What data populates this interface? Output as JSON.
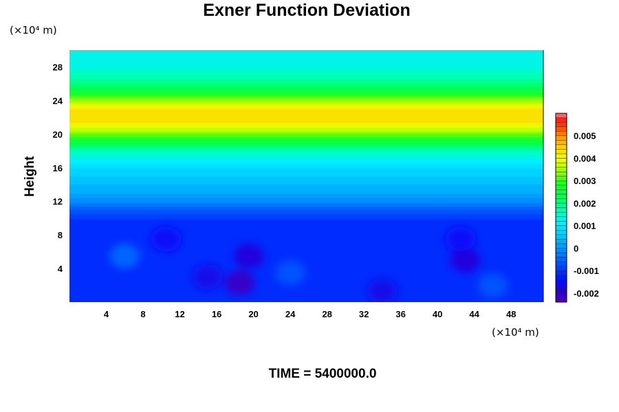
{
  "chart_data": {
    "type": "heatmap",
    "title": "Exner Function Deviation",
    "ylabel": "Height",
    "xlabel": "",
    "x_unit": "(×10⁴ m)",
    "y_unit": "(×10⁴ m)",
    "xlim": [
      0,
      51.5
    ],
    "ylim": [
      0,
      30
    ],
    "x_ticks": [
      4,
      8,
      12,
      16,
      20,
      24,
      28,
      32,
      36,
      40,
      44,
      48
    ],
    "y_ticks": [
      4,
      8,
      12,
      16,
      20,
      24,
      28
    ],
    "footer": "TIME = 5400000.0",
    "colorbar": {
      "range": [
        -0.0024,
        0.006
      ],
      "tick_values": [
        -0.002,
        -0.001,
        0,
        0.001,
        0.002,
        0.003,
        0.004,
        0.005
      ],
      "tick_labels": [
        "-0.002",
        "-0.001",
        "0",
        "0.001",
        "0.002",
        "0.003",
        "0.004",
        "0.005"
      ]
    },
    "vertical_profile": {
      "height": [
        0,
        2,
        4,
        6,
        8,
        10,
        11,
        12,
        13,
        14,
        16,
        18,
        19.5,
        20.5,
        21.5,
        22.5,
        23.5,
        24.5,
        26,
        28,
        30
      ],
      "value": [
        -0.0011,
        -0.0012,
        -0.0012,
        -0.0012,
        -0.0012,
        -0.001,
        -0.0006,
        -0.0001,
        0.0002,
        0.0004,
        0.0008,
        0.0016,
        0.0028,
        0.0036,
        0.0043,
        0.0044,
        0.004,
        0.003,
        0.002,
        0.0014,
        0.0013
      ]
    },
    "features": [
      {
        "x": 18.5,
        "y": 2.3,
        "value": -0.002
      },
      {
        "x": 19.5,
        "y": 5.5,
        "value": -0.0018
      },
      {
        "x": 43,
        "y": 5,
        "value": -0.0019
      },
      {
        "x": 42.5,
        "y": 7.5,
        "value": -0.0015
      },
      {
        "x": 10.5,
        "y": 7.5,
        "value": -0.0015
      },
      {
        "x": 34,
        "y": 1.3,
        "value": -0.0016
      },
      {
        "x": 6,
        "y": 5.5,
        "value": -0.0006
      },
      {
        "x": 24,
        "y": 3.5,
        "value": -0.0007
      },
      {
        "x": 46,
        "y": 2,
        "value": -0.0007
      },
      {
        "x": 15,
        "y": 3,
        "value": -0.0016
      }
    ]
  }
}
